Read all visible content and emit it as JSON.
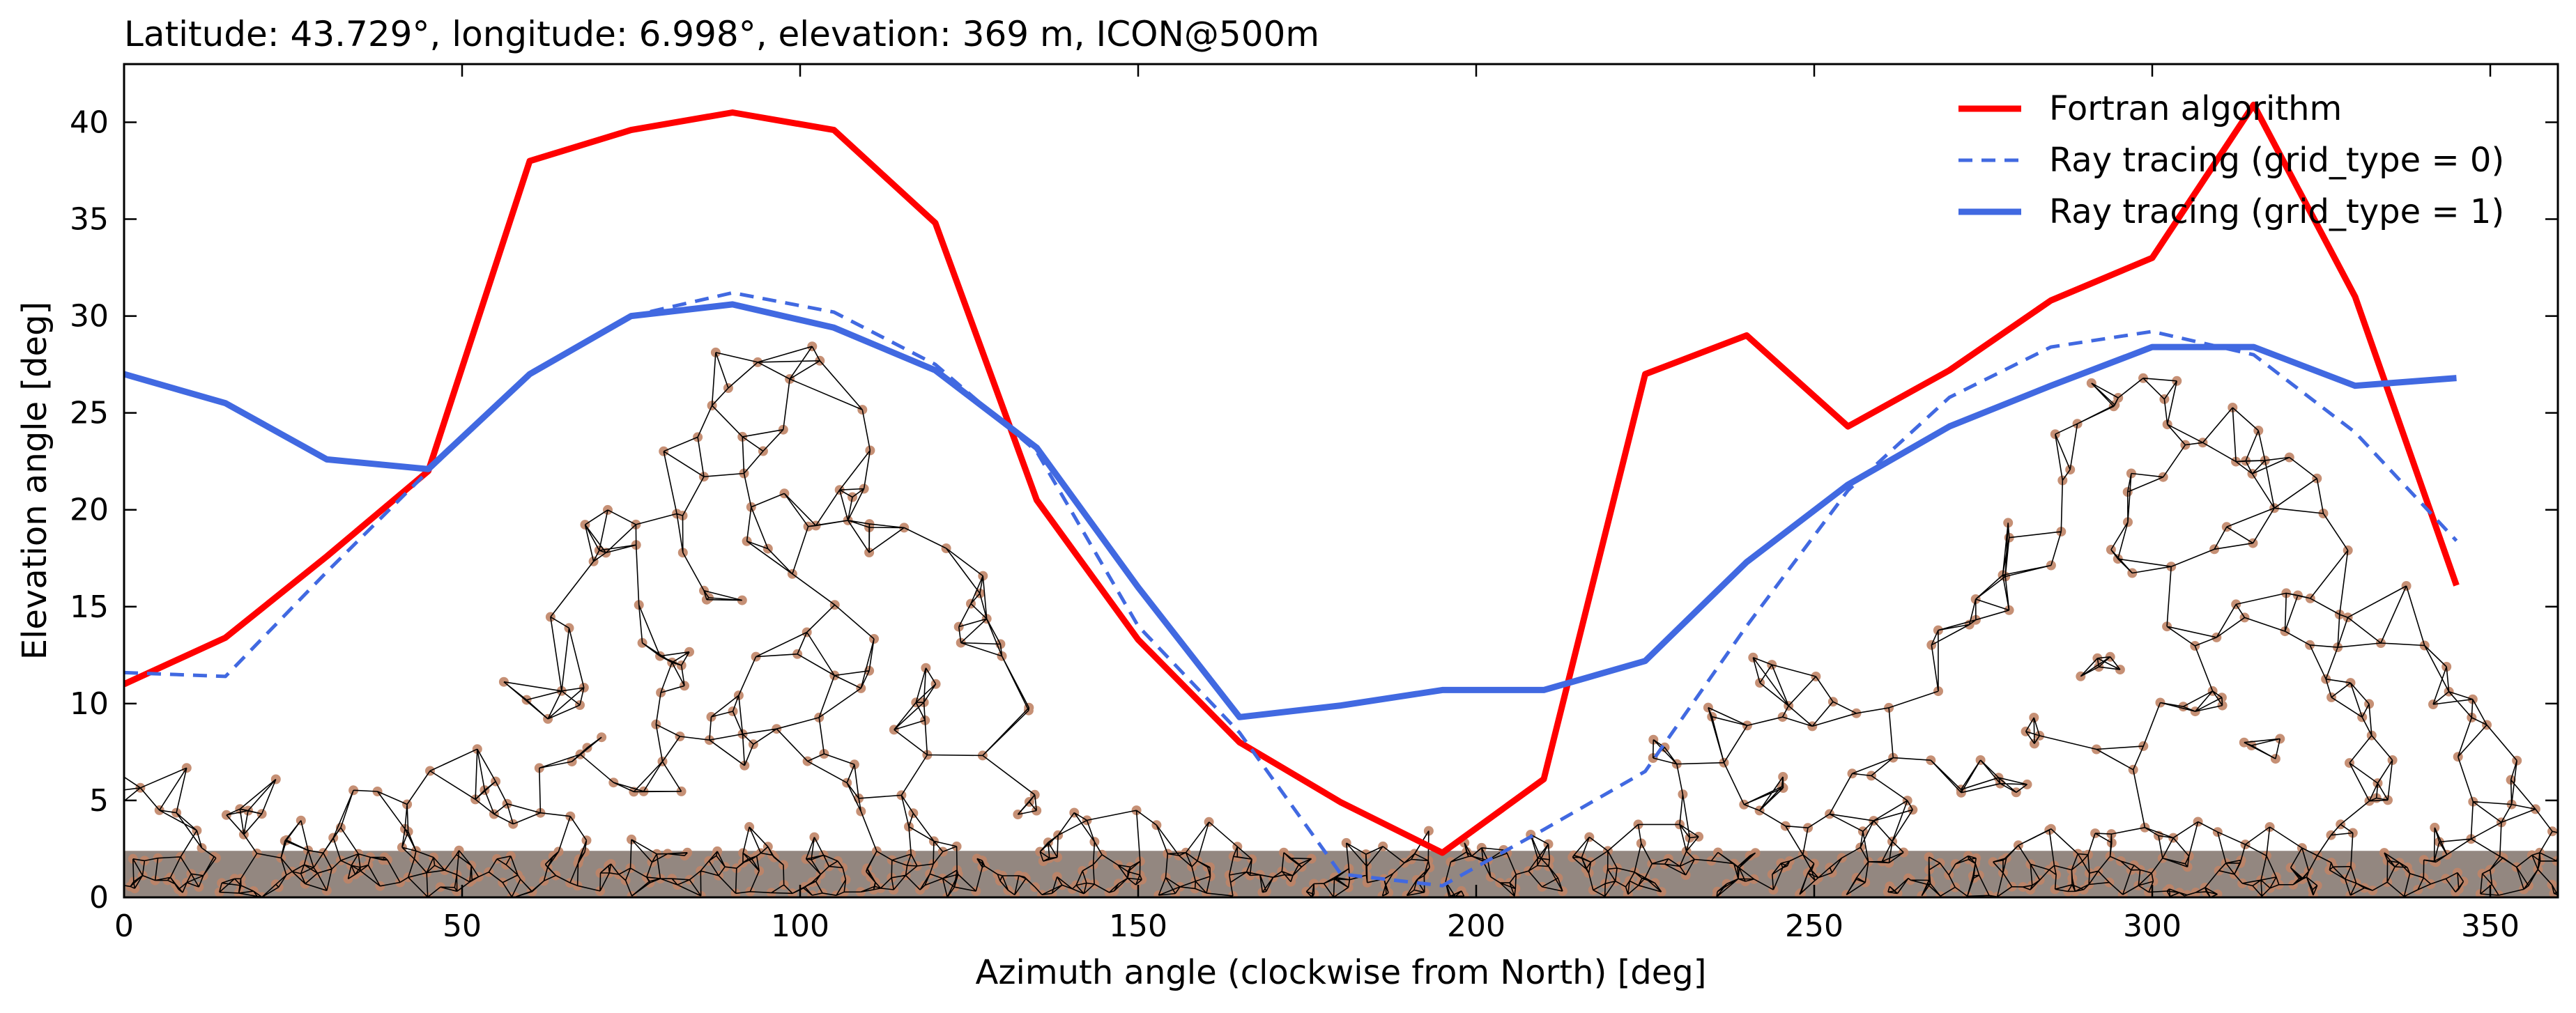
{
  "chart_data": {
    "type": "line",
    "title": "Latitude: 43.729°, longitude: 6.998°, elevation: 369 m, ICON@500m",
    "xlabel": "Azimuth angle (clockwise from North) [deg]",
    "ylabel": "Elevation angle [deg]",
    "xlim": [
      0,
      360
    ],
    "ylim": [
      0,
      43
    ],
    "xticks": [
      0,
      50,
      100,
      150,
      200,
      250,
      300,
      350
    ],
    "yticks": [
      0,
      5,
      10,
      15,
      20,
      25,
      30,
      35,
      40
    ],
    "grid": false,
    "legend_position": "top-right",
    "series": [
      {
        "name": "Fortran algorithm",
        "color": "#ff0000",
        "style": "solid",
        "x": [
          0,
          15,
          30,
          45,
          60,
          75,
          90,
          105,
          120,
          135,
          150,
          165,
          180,
          195,
          210,
          225,
          240,
          255,
          270,
          285,
          300,
          315,
          330,
          345
        ],
        "y": [
          11.0,
          13.4,
          17.6,
          22.0,
          38.0,
          39.6,
          40.5,
          39.6,
          34.8,
          20.5,
          13.3,
          8.0,
          4.9,
          2.3,
          6.1,
          27.0,
          29.0,
          24.3,
          27.2,
          30.8,
          33.0,
          40.9,
          31.0,
          16.1
        ]
      },
      {
        "name": "Ray tracing (grid_type = 0)",
        "color": "#4169e1",
        "style": "dashed",
        "x": [
          0,
          15,
          30,
          45,
          60,
          75,
          90,
          105,
          120,
          135,
          150,
          165,
          180,
          195,
          210,
          225,
          240,
          255,
          270,
          285,
          300,
          315,
          330,
          345
        ],
        "y": [
          11.6,
          11.4,
          16.8,
          22.0,
          27.0,
          30.0,
          31.2,
          30.2,
          27.5,
          23.0,
          14.0,
          8.5,
          1.2,
          0.6,
          3.5,
          6.5,
          14.0,
          21.0,
          25.8,
          28.4,
          29.2,
          28.0,
          24.0,
          18.4
        ]
      },
      {
        "name": "Ray tracing (grid_type = 1)",
        "color": "#4169e1",
        "style": "solid",
        "x": [
          0,
          15,
          30,
          45,
          60,
          75,
          90,
          105,
          120,
          135,
          150,
          165,
          180,
          195,
          210,
          225,
          240,
          255,
          270,
          285,
          300,
          315,
          330,
          345
        ],
        "y": [
          27.0,
          25.5,
          22.6,
          22.1,
          27.0,
          30.0,
          30.6,
          29.4,
          27.2,
          23.2,
          16.0,
          9.3,
          9.9,
          10.7,
          10.7,
          12.2,
          17.3,
          21.3,
          24.3,
          26.4,
          28.4,
          28.4,
          26.4,
          26.8
        ]
      }
    ]
  }
}
